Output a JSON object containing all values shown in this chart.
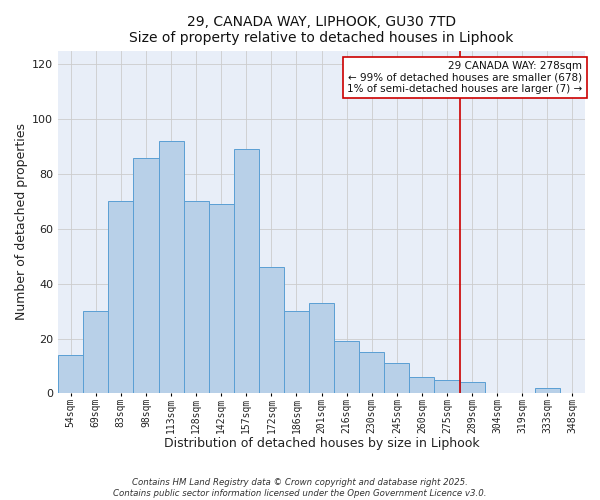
{
  "title": "29, CANADA WAY, LIPHOOK, GU30 7TD",
  "subtitle": "Size of property relative to detached houses in Liphook",
  "xlabel": "Distribution of detached houses by size in Liphook",
  "ylabel": "Number of detached properties",
  "bar_labels": [
    "54sqm",
    "69sqm",
    "83sqm",
    "98sqm",
    "113sqm",
    "128sqm",
    "142sqm",
    "157sqm",
    "172sqm",
    "186sqm",
    "201sqm",
    "216sqm",
    "230sqm",
    "245sqm",
    "260sqm",
    "275sqm",
    "289sqm",
    "304sqm",
    "319sqm",
    "333sqm",
    "348sqm"
  ],
  "bar_values": [
    14,
    30,
    70,
    86,
    92,
    70,
    69,
    89,
    46,
    30,
    33,
    19,
    15,
    11,
    6,
    5,
    4,
    0,
    0,
    2,
    0
  ],
  "bar_color": "#b8d0e8",
  "bar_edgecolor": "#5a9fd4",
  "ylim": [
    0,
    125
  ],
  "yticks": [
    0,
    20,
    40,
    60,
    80,
    100,
    120
  ],
  "vline_index": 15.5,
  "vline_color": "#cc0000",
  "annotation_title": "29 CANADA WAY: 278sqm",
  "annotation_line1": "← 99% of detached houses are smaller (678)",
  "annotation_line2": "1% of semi-detached houses are larger (7) →",
  "footer1": "Contains HM Land Registry data © Crown copyright and database right 2025.",
  "footer2": "Contains public sector information licensed under the Open Government Licence v3.0.",
  "bg_color": "#e8eef8",
  "grid_color": "#cccccc",
  "title_fontsize": 10,
  "subtitle_fontsize": 9
}
